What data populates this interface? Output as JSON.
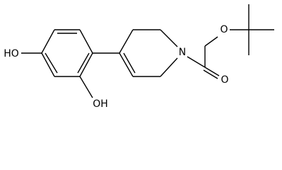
{
  "atoms": [
    {
      "label": "HO"
    },
    {
      "label": "OH"
    },
    {
      "label": "N"
    },
    {
      "label": "O"
    },
    {
      "label": "O"
    }
  ]
}
